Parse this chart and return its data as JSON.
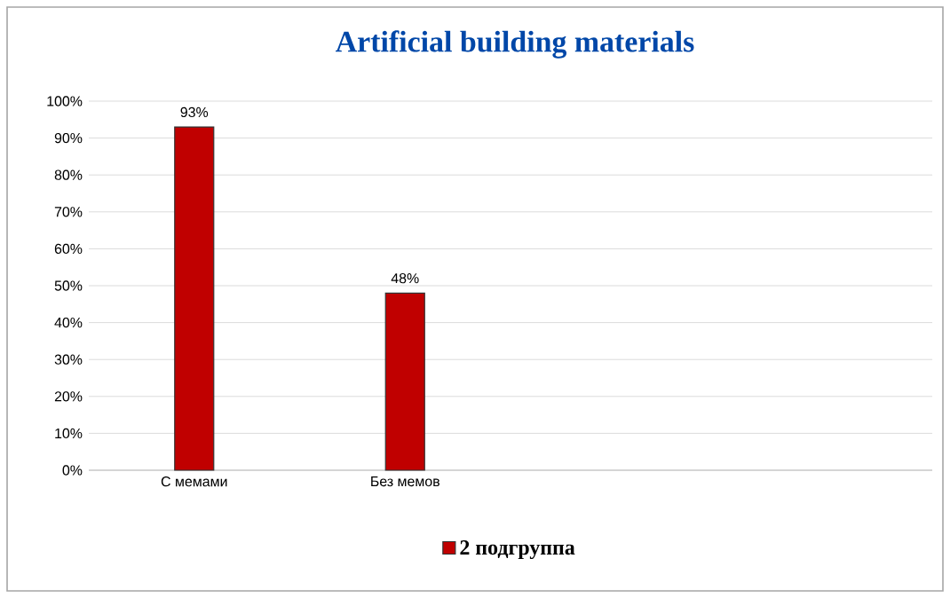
{
  "chart_data": {
    "type": "bar",
    "title": "Artificial building materials",
    "categories": [
      "С мемами",
      "Без мемов",
      null,
      null
    ],
    "series": [
      {
        "name": "2 подгруппа",
        "color": "#c00000",
        "values": [
          93,
          48,
          null,
          null
        ],
        "value_labels": [
          "93%",
          "48%",
          null,
          null
        ]
      }
    ],
    "ylim": [
      0,
      100
    ],
    "yticks": [
      {
        "value": 0,
        "label": "0%"
      },
      {
        "value": 10,
        "label": "10%"
      },
      {
        "value": 20,
        "label": "20%"
      },
      {
        "value": 30,
        "label": "30%"
      },
      {
        "value": 40,
        "label": "40%"
      },
      {
        "value": 50,
        "label": "50%"
      },
      {
        "value": 60,
        "label": "60%"
      },
      {
        "value": 70,
        "label": "70%"
      },
      {
        "value": 80,
        "label": "80%"
      },
      {
        "value": 90,
        "label": "90%"
      },
      {
        "value": 100,
        "label": "100%"
      }
    ],
    "grid": "y",
    "legend": "bottom"
  }
}
